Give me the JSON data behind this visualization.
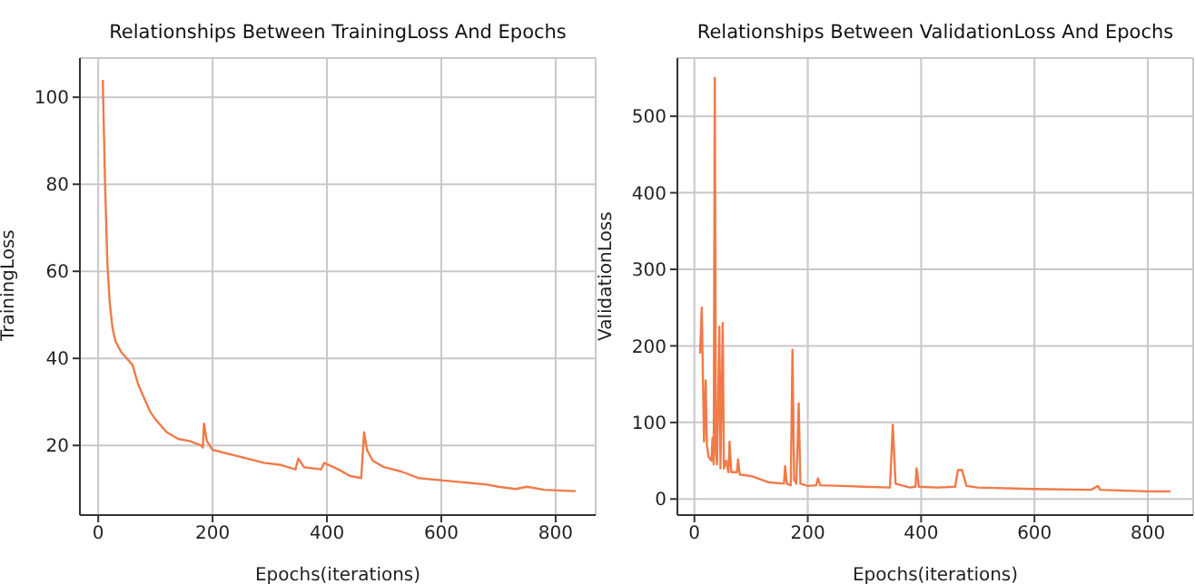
{
  "chart_data": [
    {
      "type": "line",
      "title": "Relationships Between TrainingLoss And Epochs",
      "xlabel": "Epochs(iterations)",
      "ylabel": "TrainingLoss",
      "xlim": [
        -32,
        870
      ],
      "ylim": [
        4,
        109
      ],
      "xticks": [
        0,
        200,
        400,
        600,
        800
      ],
      "yticks": [
        20,
        40,
        60,
        80,
        100
      ],
      "grid": true,
      "series": [
        {
          "color": "#f07a48",
          "x": [
            8,
            12,
            16,
            20,
            25,
            30,
            40,
            50,
            60,
            70,
            80,
            90,
            100,
            120,
            140,
            160,
            180,
            183,
            185,
            190,
            200,
            230,
            260,
            290,
            320,
            345,
            350,
            360,
            390,
            395,
            420,
            440,
            460,
            465,
            470,
            480,
            500,
            530,
            560,
            600,
            640,
            680,
            700,
            730,
            750,
            780,
            835
          ],
          "values": [
            104,
            80,
            62,
            53,
            47,
            44,
            41.5,
            40,
            38.5,
            34,
            31,
            28,
            26,
            23,
            21.5,
            21,
            20,
            19.5,
            25,
            21,
            19,
            18,
            17,
            16,
            15.5,
            14.5,
            17,
            15,
            14.5,
            16,
            14.5,
            13,
            12.5,
            23,
            19,
            16.5,
            15,
            14,
            12.5,
            12,
            11.5,
            11,
            10.5,
            10,
            10.5,
            9.8,
            9.5
          ]
        }
      ]
    },
    {
      "type": "line",
      "title": "Relationships Between ValidationLoss And Epochs",
      "xlabel": "Epochs(iterations)",
      "ylabel": "ValidationLoss",
      "xlim": [
        -30,
        880
      ],
      "ylim": [
        -21,
        576
      ],
      "xticks": [
        0,
        200,
        400,
        600,
        800
      ],
      "yticks": [
        0,
        100,
        200,
        300,
        400,
        500
      ],
      "grid": true,
      "series": [
        {
          "color": "#f07a48",
          "x": [
            10,
            13,
            15,
            17,
            20,
            22,
            25,
            30,
            32,
            34,
            36,
            38,
            40,
            44,
            46,
            50,
            52,
            56,
            60,
            62,
            65,
            75,
            77,
            80,
            100,
            130,
            158,
            160,
            163,
            170,
            173,
            176,
            180,
            184,
            187,
            200,
            215,
            218,
            222,
            260,
            300,
            345,
            350,
            355,
            380,
            390,
            392,
            396,
            430,
            460,
            465,
            472,
            480,
            500,
            600,
            700,
            712,
            716,
            800,
            840
          ],
          "values": [
            190,
            250,
            160,
            75,
            155,
            70,
            55,
            50,
            80,
            45,
            550,
            60,
            45,
            225,
            40,
            230,
            40,
            50,
            35,
            75,
            35,
            35,
            52,
            32,
            30,
            22,
            20,
            43,
            20,
            18,
            195,
            25,
            20,
            125,
            20,
            17,
            18,
            27,
            18,
            17,
            16,
            15,
            97,
            20,
            15,
            16,
            40,
            16,
            15,
            16,
            38,
            38,
            17,
            15,
            13,
            12,
            17,
            12,
            10,
            10
          ]
        }
      ]
    }
  ]
}
